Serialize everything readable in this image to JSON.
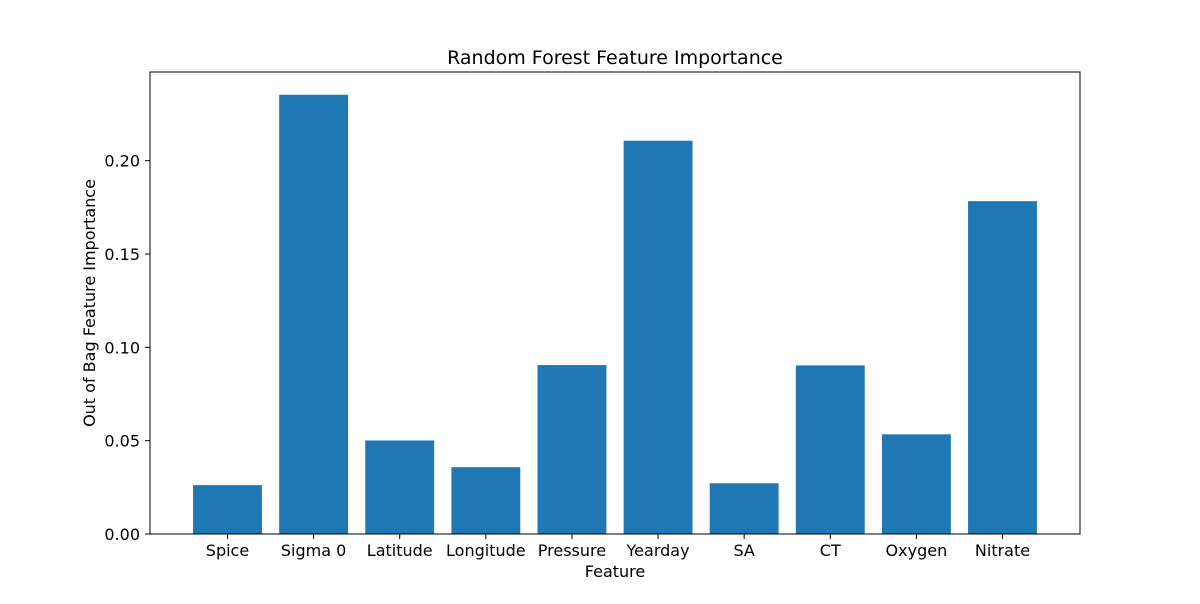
{
  "chart_data": {
    "type": "bar",
    "title": "Random Forest Feature Importance",
    "xlabel": "Feature",
    "ylabel": "Out of Bag Feature Importance",
    "categories": [
      "Spice",
      "Sigma 0",
      "Latitude",
      "Longitude",
      "Pressure",
      "Yearday",
      "SA",
      "CT",
      "Oxygen",
      "Nitrate"
    ],
    "values": [
      0.0262,
      0.2353,
      0.0501,
      0.0358,
      0.0905,
      0.2107,
      0.0272,
      0.0903,
      0.0534,
      0.1783
    ],
    "ylim": [
      0,
      0.2475
    ],
    "yticks": [
      0.0,
      0.05,
      0.1,
      0.15,
      0.2
    ],
    "ytick_labels": [
      "0.00",
      "0.05",
      "0.10",
      "0.15",
      "0.20"
    ],
    "bar_color": "#1f77b4",
    "grid": false,
    "legend": "none"
  }
}
